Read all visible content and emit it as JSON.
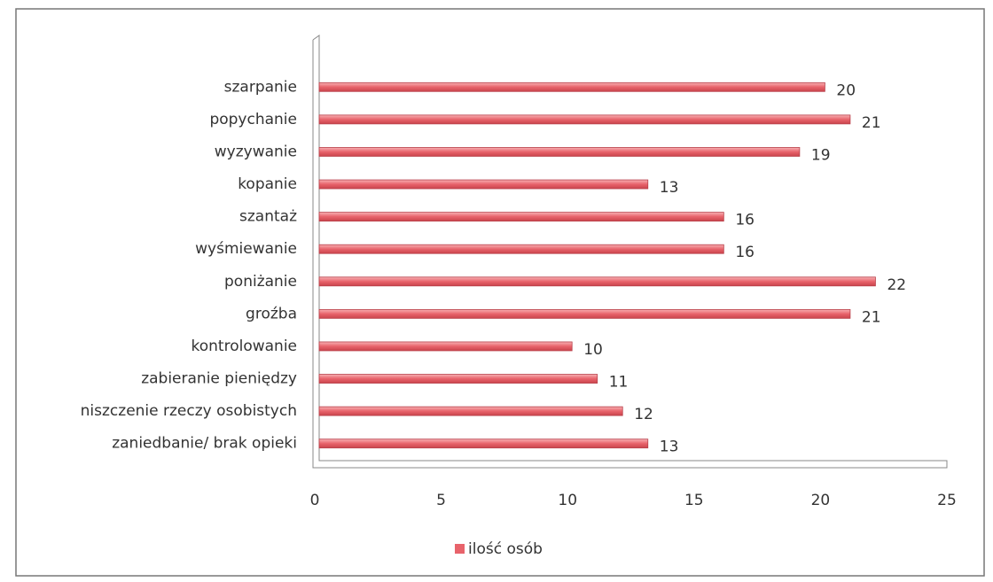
{
  "chart_data": {
    "type": "bar",
    "orientation": "horizontal",
    "categories": [
      "szarpanie",
      "popychanie",
      "wyzywanie",
      "kopanie",
      "szantaż",
      "wyśmiewanie",
      "poniżanie",
      "groźba",
      "kontrolowanie",
      "zabieranie pieniędzy",
      "niszczenie rzeczy osobistych",
      "zaniedbanie/ brak opieki"
    ],
    "series": [
      {
        "name": "ilość osób",
        "color": "#e8636b",
        "values": [
          20,
          21,
          19,
          13,
          16,
          16,
          22,
          21,
          10,
          11,
          12,
          13
        ]
      }
    ],
    "xlim": [
      0,
      25
    ],
    "xticks": [
      0,
      5,
      10,
      15,
      20,
      25
    ],
    "grid": false,
    "legend": "bottom",
    "data_labels": true
  }
}
